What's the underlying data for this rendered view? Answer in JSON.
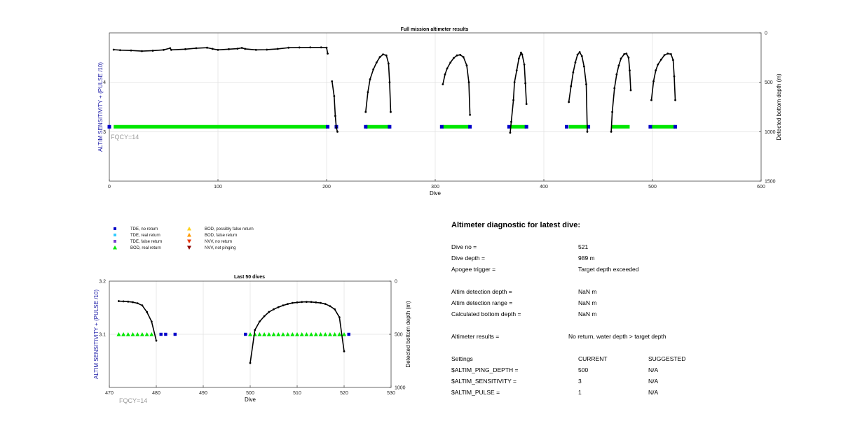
{
  "chart_data": [
    {
      "type": "line",
      "title": "Full mission altimeter results",
      "xlabel": "Dive",
      "ylabel_left": "ALTIM SENSITIVITY + (PULSE /10)",
      "ylabel_right": "Detected bottom depth (m)",
      "xlim": [
        0,
        600
      ],
      "ylim_left": [
        2,
        5
      ],
      "ylim_right": [
        1500,
        0
      ],
      "x_ticks": [
        "0",
        "100",
        "200",
        "300",
        "400",
        "500",
        "600"
      ],
      "y_left_ticks": [
        "3",
        "4"
      ],
      "y_right_ticks": [
        "0",
        "500",
        "1000",
        "1500"
      ],
      "annotation": "FQCY=14",
      "grid": true,
      "series": [
        {
          "label": "Sensitivity (steady)",
          "color": "#00e600",
          "points": [
            [
              4,
              3.1
            ],
            [
              200,
              3.1
            ]
          ]
        },
        {
          "label": "Sensitivity (steady)",
          "color": "#00e600",
          "points": [
            [
              236,
              3.1
            ],
            [
              258,
              3.1
            ]
          ]
        },
        {
          "label": "Sensitivity (steady)",
          "color": "#00e600",
          "points": [
            [
              307,
              3.1
            ],
            [
              331,
              3.1
            ]
          ]
        },
        {
          "label": "Sensitivity (steady)",
          "color": "#00e600",
          "points": [
            [
              369,
              3.1
            ],
            [
              383,
              3.1
            ]
          ]
        },
        {
          "label": "Sensitivity (steady)",
          "color": "#00e600",
          "points": [
            [
              423,
              3.1
            ],
            [
              440,
              3.1
            ]
          ]
        },
        {
          "label": "Sensitivity (steady)",
          "color": "#00e600",
          "points": [
            [
              462,
              3.1
            ],
            [
              479,
              3.1
            ]
          ]
        },
        {
          "label": "Sensitivity (steady)",
          "color": "#00e600",
          "points": [
            [
              499,
              3.1
            ],
            [
              521,
              3.1
            ]
          ]
        }
      ],
      "bottom_depth_segments": [
        [
          [
            4,
            170
          ],
          [
            10,
            175
          ],
          [
            20,
            178
          ],
          [
            30,
            185
          ],
          [
            40,
            180
          ],
          [
            50,
            172
          ],
          [
            56,
            155
          ],
          [
            57,
            172
          ],
          [
            70,
            165
          ],
          [
            80,
            155
          ],
          [
            90,
            150
          ],
          [
            95,
            162
          ],
          [
            100,
            172
          ],
          [
            110,
            165
          ],
          [
            118,
            160
          ],
          [
            122,
            152
          ],
          [
            125,
            162
          ],
          [
            135,
            172
          ],
          [
            145,
            170
          ],
          [
            155,
            162
          ],
          [
            165,
            150
          ],
          [
            175,
            148
          ],
          [
            185,
            147
          ],
          [
            195,
            147
          ],
          [
            200,
            150
          ],
          [
            201,
            210
          ]
        ],
        [
          [
            205,
            490
          ],
          [
            207,
            640
          ],
          [
            208,
            840
          ],
          [
            209,
            960
          ],
          [
            210,
            1000
          ]
        ],
        [
          [
            236,
            800
          ],
          [
            238,
            600
          ],
          [
            240,
            470
          ],
          [
            243,
            370
          ],
          [
            246,
            300
          ],
          [
            249,
            245
          ],
          [
            252,
            218
          ],
          [
            255,
            228
          ],
          [
            257,
            310
          ],
          [
            258,
            500
          ],
          [
            259,
            800
          ]
        ],
        [
          [
            307,
            520
          ],
          [
            309,
            420
          ],
          [
            311,
            360
          ],
          [
            314,
            300
          ],
          [
            317,
            255
          ],
          [
            320,
            228
          ],
          [
            323,
            222
          ],
          [
            326,
            245
          ],
          [
            329,
            330
          ],
          [
            331,
            500
          ],
          [
            332,
            830
          ]
        ],
        [
          [
            369,
            1010
          ],
          [
            370,
            900
          ],
          [
            372,
            680
          ],
          [
            373,
            500
          ],
          [
            375,
            380
          ],
          [
            377,
            260
          ],
          [
            379,
            200
          ],
          [
            380,
            218
          ],
          [
            382,
            320
          ],
          [
            383,
            510
          ],
          [
            384,
            720
          ]
        ],
        [
          [
            423,
            700
          ],
          [
            425,
            540
          ],
          [
            427,
            400
          ],
          [
            429,
            300
          ],
          [
            431,
            220
          ],
          [
            433,
            195
          ],
          [
            435,
            235
          ],
          [
            437,
            340
          ],
          [
            439,
            520
          ],
          [
            440,
            1000
          ]
        ],
        [
          [
            462,
            1000
          ],
          [
            463,
            800
          ],
          [
            465,
            560
          ],
          [
            467,
            420
          ],
          [
            469,
            330
          ],
          [
            471,
            260
          ],
          [
            474,
            215
          ],
          [
            476,
            210
          ],
          [
            478,
            250
          ],
          [
            479,
            380
          ],
          [
            480,
            580
          ]
        ],
        [
          [
            499,
            680
          ],
          [
            501,
            490
          ],
          [
            503,
            380
          ],
          [
            505,
            320
          ],
          [
            508,
            270
          ],
          [
            511,
            225
          ],
          [
            514,
            210
          ],
          [
            517,
            215
          ],
          [
            519,
            275
          ],
          [
            520,
            440
          ],
          [
            521,
            680
          ]
        ]
      ],
      "tde_points_x": [
        0,
        201,
        209,
        236,
        258,
        306,
        332,
        368,
        384,
        421,
        441,
        498,
        521
      ]
    },
    {
      "type": "line",
      "title": "Last 50 dives",
      "xlabel": "Dive",
      "ylabel_left": "ALTIM SENSITIVITY + (PULSE /10)",
      "ylabel_right": "Detected bottom depth (m)",
      "xlim": [
        470,
        530
      ],
      "ylim_left": [
        3,
        3.2
      ],
      "ylim_right": [
        1000,
        0
      ],
      "x_ticks": [
        "470",
        "480",
        "490",
        "500",
        "510",
        "520",
        "530"
      ],
      "y_left_ticks": [
        "3.1",
        "3.2"
      ],
      "y_right_ticks": [
        "0",
        "500",
        "1000"
      ],
      "annotation": "FQCY=14",
      "grid": true,
      "bod_real_x": [
        472,
        473,
        474,
        475,
        476,
        477,
        478,
        479,
        500,
        501,
        502,
        503,
        504,
        505,
        506,
        507,
        508,
        509,
        510,
        511,
        512,
        513,
        514,
        515,
        516,
        517,
        518,
        519,
        520
      ],
      "tde_no_return_x": [
        481,
        482,
        484,
        499,
        521
      ],
      "bottom_depth_segments": [
        [
          [
            472,
            188
          ],
          [
            473,
            190
          ],
          [
            474,
            193
          ],
          [
            475,
            198
          ],
          [
            476,
            208
          ],
          [
            477,
            228
          ],
          [
            478,
            290
          ],
          [
            479,
            380
          ],
          [
            480,
            560
          ]
        ],
        [
          [
            500,
            770
          ],
          [
            501,
            460
          ],
          [
            502,
            380
          ],
          [
            503,
            330
          ],
          [
            504,
            290
          ],
          [
            505,
            265
          ],
          [
            506,
            245
          ],
          [
            507,
            228
          ],
          [
            508,
            215
          ],
          [
            509,
            205
          ],
          [
            510,
            200
          ],
          [
            511,
            196
          ],
          [
            512,
            195
          ],
          [
            513,
            196
          ],
          [
            514,
            200
          ],
          [
            515,
            205
          ],
          [
            516,
            215
          ],
          [
            517,
            235
          ],
          [
            518,
            265
          ],
          [
            519,
            340
          ],
          [
            520,
            660
          ]
        ]
      ]
    }
  ],
  "legend": [
    {
      "label": "TDE, no return",
      "marker": "square",
      "color": "#0000c8"
    },
    {
      "label": "TDE, real return",
      "marker": "square",
      "color": "#33ccff"
    },
    {
      "label": "TDE, false return",
      "marker": "square",
      "color": "#7a3fd1"
    },
    {
      "label": "BOD, real return",
      "marker": "triangle-up",
      "color": "#00e600"
    },
    {
      "label": "BOD, possibly false return",
      "marker": "triangle-up",
      "color": "#ffd21a"
    },
    {
      "label": "BOD, false return",
      "marker": "triangle-up",
      "color": "#ff9900"
    },
    {
      "label": "NVV, no return",
      "marker": "triangle-down",
      "color": "#e63200"
    },
    {
      "label": "NVV, not pinging",
      "marker": "triangle-down",
      "color": "#8b0000"
    }
  ],
  "diagnostic": {
    "title": "Altimeter diagnostic for latest dive:",
    "rows": [
      {
        "label": "Dive no =",
        "value": "521"
      },
      {
        "label": "Dive depth =",
        "value": "989 m"
      },
      {
        "label": "Apogee trigger =",
        "value": "Target depth exceeded"
      },
      {
        "label": "Altim detection depth =",
        "value": "NaN m"
      },
      {
        "label": "Altim detection range =",
        "value": "NaN m"
      },
      {
        "label": "Calculated bottom depth =",
        "value": "NaN m"
      },
      {
        "label": "Altimeter results =",
        "value": "No return, water depth > target depth"
      }
    ],
    "settings_header": {
      "label": "Settings",
      "current": "CURRENT",
      "suggested": "SUGGESTED"
    },
    "settings": [
      {
        "label": "$ALTIM_PING_DEPTH =",
        "current": "500",
        "suggested": "N/A"
      },
      {
        "label": "$ALTIM_SENSITIVITY =",
        "current": "3",
        "suggested": "N/A"
      },
      {
        "label": "$ALTIM_PULSE =",
        "current": "1",
        "suggested": "N/A"
      }
    ]
  }
}
